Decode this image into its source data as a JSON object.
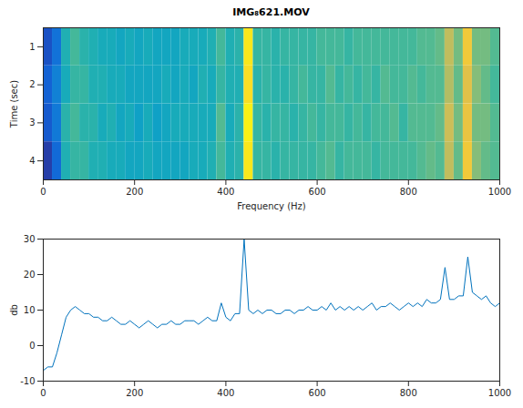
{
  "chart_data": [
    {
      "type": "heatmap",
      "title": "IMG₈621.MOV",
      "xlabel": "Frequency (Hz)",
      "ylabel": "Time (sec)",
      "x_edges": [
        0,
        20,
        40,
        60,
        80,
        100,
        120,
        140,
        160,
        180,
        200,
        220,
        240,
        260,
        280,
        300,
        320,
        340,
        360,
        380,
        400,
        420,
        440,
        460,
        480,
        500,
        520,
        540,
        560,
        580,
        600,
        620,
        640,
        660,
        680,
        700,
        720,
        740,
        760,
        780,
        800,
        820,
        840,
        860,
        880,
        900,
        920,
        940,
        960,
        980,
        1000
      ],
      "y_edges": [
        0.5,
        1.5,
        2.5,
        3.5,
        4.5
      ],
      "z": [
        [
          -6,
          -2,
          8,
          11,
          9,
          8,
          7,
          7,
          6,
          7,
          6,
          7,
          6,
          6,
          6,
          7,
          7,
          7,
          8,
          11,
          8,
          9,
          28,
          10,
          10,
          9,
          10,
          10,
          10,
          10,
          11,
          11,
          11,
          10,
          11,
          11,
          11,
          11,
          11,
          11,
          11,
          12,
          12,
          13,
          19,
          14,
          24,
          14,
          14,
          12
        ],
        [
          -4,
          0,
          7,
          10,
          10,
          8,
          8,
          7,
          7,
          6,
          6,
          6,
          6,
          7,
          6,
          7,
          6,
          8,
          7,
          10,
          8,
          8,
          27,
          9,
          10,
          9,
          9,
          10,
          11,
          10,
          10,
          12,
          10,
          11,
          10,
          11,
          10,
          12,
          11,
          11,
          12,
          11,
          12,
          12,
          18,
          13,
          22,
          15,
          13,
          11
        ],
        [
          -5,
          -1,
          9,
          11,
          9,
          9,
          7,
          8,
          6,
          7,
          5,
          7,
          5,
          6,
          7,
          7,
          7,
          7,
          7,
          12,
          7,
          9,
          29,
          10,
          9,
          10,
          10,
          9,
          10,
          11,
          10,
          11,
          11,
          10,
          11,
          10,
          11,
          11,
          12,
          10,
          12,
          12,
          12,
          13,
          20,
          14,
          23,
          14,
          14,
          12
        ],
        [
          -8,
          -3,
          8,
          10,
          10,
          8,
          8,
          7,
          7,
          6,
          6,
          7,
          6,
          6,
          6,
          6,
          7,
          7,
          8,
          11,
          8,
          9,
          28,
          10,
          10,
          9,
          10,
          10,
          10,
          10,
          11,
          12,
          10,
          11,
          11,
          11,
          10,
          11,
          11,
          11,
          11,
          12,
          13,
          12,
          19,
          13,
          24,
          15,
          13,
          12
        ]
      ],
      "clim": [
        -10,
        30
      ],
      "xlim": [
        0,
        1000
      ],
      "xticks": [
        0,
        200,
        400,
        600,
        800,
        1000
      ],
      "ylim": [
        0.5,
        4.5
      ],
      "yticks": [
        1,
        2,
        3,
        4
      ]
    },
    {
      "type": "line",
      "ylabel": "db",
      "color": "#0072bd",
      "x": [
        0,
        10,
        20,
        30,
        40,
        50,
        60,
        70,
        80,
        90,
        100,
        110,
        120,
        130,
        140,
        150,
        160,
        170,
        180,
        190,
        200,
        210,
        220,
        230,
        240,
        250,
        260,
        270,
        280,
        290,
        300,
        310,
        320,
        330,
        340,
        350,
        360,
        370,
        380,
        390,
        400,
        410,
        420,
        430,
        440,
        450,
        460,
        470,
        480,
        490,
        500,
        510,
        520,
        530,
        540,
        550,
        560,
        570,
        580,
        590,
        600,
        610,
        620,
        630,
        640,
        650,
        660,
        670,
        680,
        690,
        700,
        710,
        720,
        730,
        740,
        750,
        760,
        770,
        780,
        790,
        800,
        810,
        820,
        830,
        840,
        850,
        860,
        870,
        880,
        890,
        900,
        910,
        920,
        930,
        940,
        950,
        960,
        970,
        980,
        990,
        1000
      ],
      "values": [
        -7,
        -6,
        -6,
        -2,
        3,
        8,
        10,
        11,
        10,
        9,
        9,
        8,
        8,
        7,
        7,
        8,
        7,
        6,
        6,
        7,
        6,
        5,
        6,
        7,
        6,
        5,
        6,
        6,
        7,
        6,
        6,
        7,
        7,
        7,
        6,
        7,
        8,
        7,
        7,
        12,
        8,
        7,
        9,
        9,
        30,
        10,
        9,
        10,
        9,
        10,
        10,
        9,
        9,
        10,
        10,
        9,
        10,
        10,
        11,
        10,
        10,
        11,
        10,
        12,
        10,
        11,
        10,
        11,
        10,
        11,
        10,
        11,
        12,
        10,
        11,
        11,
        12,
        11,
        10,
        11,
        12,
        11,
        12,
        11,
        13,
        12,
        12,
        13,
        22,
        13,
        13,
        14,
        14,
        25,
        15,
        14,
        13,
        14,
        12,
        11,
        12
      ],
      "xlim": [
        0,
        1000
      ],
      "xticks": [
        0,
        200,
        400,
        600,
        800,
        1000
      ],
      "ylim": [
        -10,
        30
      ],
      "yticks": [
        -10,
        0,
        10,
        20,
        30
      ]
    }
  ]
}
